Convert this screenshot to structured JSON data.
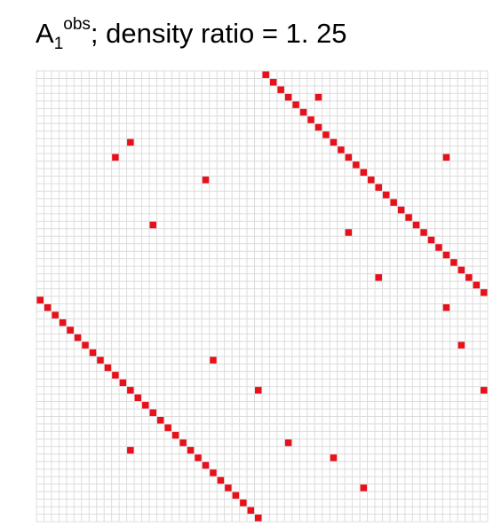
{
  "chart_data": {
    "type": "heatmap",
    "title": {
      "base": "A",
      "sub": "1",
      "sup": "obs",
      "rest": "; density ratio = 1. 25"
    },
    "xlabel": "",
    "ylabel": "",
    "n_rows": 60,
    "n_cols": 60,
    "grid": true,
    "colors": {
      "filled": "#e8101a",
      "empty": "#ffffff",
      "grid": "#dcdcdc"
    },
    "filled_cells": [
      [
        0,
        30
      ],
      [
        1,
        31
      ],
      [
        2,
        32
      ],
      [
        3,
        33
      ],
      [
        4,
        34
      ],
      [
        5,
        35
      ],
      [
        6,
        36
      ],
      [
        7,
        37
      ],
      [
        8,
        38
      ],
      [
        9,
        39
      ],
      [
        10,
        40
      ],
      [
        11,
        41
      ],
      [
        12,
        42
      ],
      [
        13,
        43
      ],
      [
        14,
        44
      ],
      [
        15,
        45
      ],
      [
        16,
        46
      ],
      [
        17,
        47
      ],
      [
        18,
        48
      ],
      [
        19,
        49
      ],
      [
        20,
        50
      ],
      [
        21,
        51
      ],
      [
        22,
        52
      ],
      [
        23,
        53
      ],
      [
        24,
        54
      ],
      [
        25,
        55
      ],
      [
        26,
        56
      ],
      [
        27,
        57
      ],
      [
        28,
        58
      ],
      [
        29,
        59
      ],
      [
        30,
        0
      ],
      [
        31,
        1
      ],
      [
        32,
        2
      ],
      [
        33,
        3
      ],
      [
        34,
        4
      ],
      [
        35,
        5
      ],
      [
        36,
        6
      ],
      [
        37,
        7
      ],
      [
        38,
        8
      ],
      [
        39,
        9
      ],
      [
        40,
        10
      ],
      [
        41,
        11
      ],
      [
        42,
        12
      ],
      [
        43,
        13
      ],
      [
        44,
        14
      ],
      [
        45,
        15
      ],
      [
        46,
        16
      ],
      [
        47,
        17
      ],
      [
        48,
        18
      ],
      [
        49,
        19
      ],
      [
        50,
        20
      ],
      [
        51,
        21
      ],
      [
        52,
        22
      ],
      [
        53,
        23
      ],
      [
        54,
        24
      ],
      [
        55,
        25
      ],
      [
        56,
        26
      ],
      [
        57,
        27
      ],
      [
        58,
        28
      ],
      [
        59,
        29
      ],
      [
        3,
        37
      ],
      [
        9,
        12
      ],
      [
        11,
        10
      ],
      [
        14,
        22
      ],
      [
        20,
        15
      ],
      [
        21,
        41
      ],
      [
        11,
        54
      ],
      [
        27,
        45
      ],
      [
        31,
        54
      ],
      [
        34,
        4
      ],
      [
        38,
        23
      ],
      [
        36,
        56
      ],
      [
        42,
        59
      ],
      [
        42,
        29
      ],
      [
        49,
        33
      ],
      [
        50,
        12
      ],
      [
        51,
        39
      ],
      [
        55,
        43
      ]
    ]
  }
}
